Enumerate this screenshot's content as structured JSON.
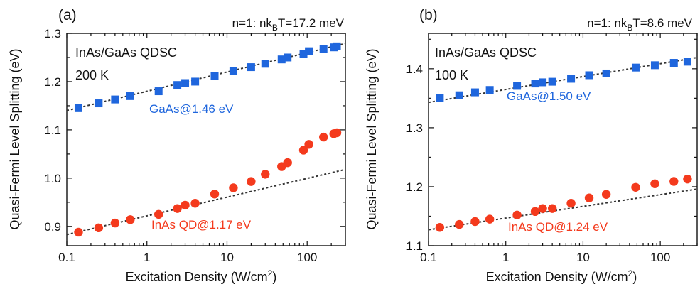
{
  "colors": {
    "gaas": "#1f66dd",
    "inas": "#f43a1d",
    "axis": "#111111",
    "fit": "#333333"
  },
  "chart_data": [
    {
      "type": "scatter",
      "panel_label": "(a)",
      "condition": "n=1: nk",
      "condition_sub": "B",
      "condition_rest": "T=17.2 meV",
      "sample": "InAs/GaAs QDSC",
      "temperature": "200 K",
      "xlabel": "Excitation Density (W/cm",
      "xlabel_sup": "2",
      "xlabel_end": ")",
      "ylabel": "Quasi-Fermi Level Splitting (eV)",
      "xscale": "log",
      "xlim": [
        0.1,
        300
      ],
      "ylim": [
        0.86,
        1.3
      ],
      "xticks": [
        0.1,
        1,
        10,
        100
      ],
      "xtick_labels": [
        "0.1",
        "1",
        "10",
        "100"
      ],
      "yticks": [
        0.9,
        1.0,
        1.1,
        1.2,
        1.3
      ],
      "ytick_labels": [
        "0.9",
        "1.0",
        "1.1",
        "1.2",
        "1.3"
      ],
      "series": [
        {
          "name": "GaAs@1.46 eV",
          "marker": "square",
          "color": "#1f66dd",
          "x": [
            0.14,
            0.25,
            0.4,
            0.62,
            1.4,
            2.4,
            3.0,
            4.0,
            7.0,
            12,
            20,
            30,
            48,
            57,
            90,
            105,
            160,
            215,
            235
          ],
          "y": [
            1.145,
            1.155,
            1.163,
            1.17,
            1.18,
            1.193,
            1.197,
            1.2,
            1.212,
            1.222,
            1.23,
            1.237,
            1.246,
            1.25,
            1.258,
            1.263,
            1.267,
            1.271,
            1.273
          ],
          "fit_x": [
            0.1,
            300
          ],
          "fit_y": [
            1.14,
            1.279
          ]
        },
        {
          "name": "InAs QD@1.17 eV",
          "marker": "circle",
          "color": "#f43a1d",
          "x": [
            0.14,
            0.25,
            0.4,
            0.62,
            1.4,
            2.4,
            3.0,
            4.0,
            7.0,
            12,
            20,
            30,
            48,
            57,
            90,
            105,
            160,
            215,
            235
          ],
          "y": [
            0.888,
            0.897,
            0.907,
            0.914,
            0.925,
            0.937,
            0.944,
            0.948,
            0.967,
            0.98,
            0.993,
            1.008,
            1.024,
            1.032,
            1.058,
            1.07,
            1.085,
            1.092,
            1.094
          ],
          "fit_x": [
            0.1,
            300
          ],
          "fit_y": [
            0.883,
            1.018
          ]
        }
      ]
    },
    {
      "type": "scatter",
      "panel_label": "(b)",
      "condition": "n=1: nk",
      "condition_sub": "B",
      "condition_rest": "T=8.6 meV",
      "sample": "InAs/GaAs QDSC",
      "temperature": "100 K",
      "xlabel": "Excitation Density (W/cm",
      "xlabel_sup": "2",
      "xlabel_end": ")",
      "ylabel": "Quasi-Fermi Level Splitting (eV)",
      "xscale": "log",
      "xlim": [
        0.1,
        300
      ],
      "ylim": [
        1.1,
        1.46
      ],
      "xticks": [
        0.1,
        1,
        10,
        100
      ],
      "xtick_labels": [
        "0.1",
        "1",
        "10",
        "100"
      ],
      "yticks": [
        1.1,
        1.2,
        1.3,
        1.4
      ],
      "ytick_labels": [
        "1.1",
        "1.2",
        "1.3",
        "1.4"
      ],
      "series": [
        {
          "name": "GaAs@1.50 eV",
          "marker": "square",
          "color": "#1f66dd",
          "x": [
            0.14,
            0.25,
            0.4,
            0.62,
            1.4,
            2.4,
            3.0,
            4.0,
            7.0,
            12,
            20,
            48,
            85,
            150,
            225
          ],
          "y": [
            1.35,
            1.355,
            1.36,
            1.364,
            1.371,
            1.375,
            1.377,
            1.378,
            1.383,
            1.389,
            1.392,
            1.402,
            1.406,
            1.41,
            1.412
          ],
          "fit_x": [
            0.1,
            300
          ],
          "fit_y": [
            1.343,
            1.419
          ]
        },
        {
          "name": "InAs QD@1.24 eV",
          "marker": "circle",
          "color": "#f43a1d",
          "x": [
            0.14,
            0.25,
            0.4,
            0.62,
            1.4,
            2.4,
            3.0,
            4.0,
            7.0,
            12,
            20,
            48,
            85,
            150,
            225
          ],
          "y": [
            1.131,
            1.136,
            1.141,
            1.145,
            1.152,
            1.158,
            1.163,
            1.163,
            1.172,
            1.181,
            1.187,
            1.199,
            1.205,
            1.209,
            1.213
          ],
          "fit_x": [
            0.1,
            300
          ],
          "fit_y": [
            1.127,
            1.196
          ]
        }
      ]
    }
  ]
}
